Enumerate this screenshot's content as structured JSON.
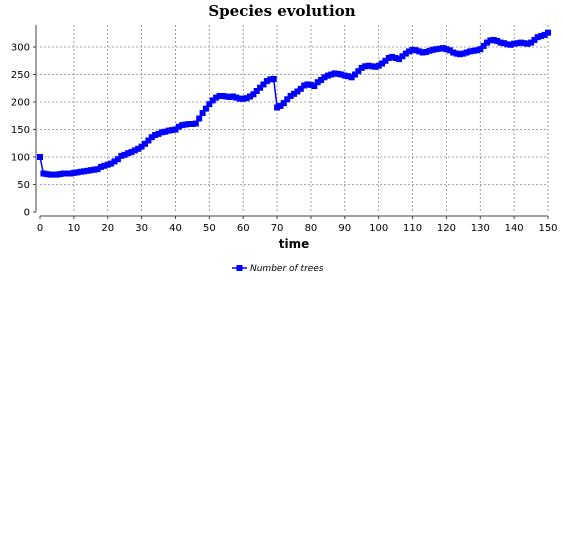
{
  "chart_data": {
    "type": "line",
    "title": "Species evolution",
    "xlabel": "time",
    "ylabel": "",
    "xlim": [
      0,
      150
    ],
    "ylim": [
      0,
      340
    ],
    "xticks": [
      0,
      10,
      20,
      30,
      40,
      50,
      60,
      70,
      80,
      90,
      100,
      110,
      120,
      130,
      140,
      150
    ],
    "yticks": [
      0,
      50,
      100,
      150,
      200,
      250,
      300
    ],
    "grid": true,
    "legend": "bottom",
    "series": [
      {
        "name": "Number of trees",
        "color": "#0000ff",
        "marker": "square",
        "x": [
          0,
          1,
          2,
          3,
          4,
          5,
          6,
          7,
          8,
          9,
          10,
          11,
          12,
          13,
          14,
          15,
          16,
          17,
          18,
          19,
          20,
          21,
          22,
          23,
          24,
          25,
          26,
          27,
          28,
          29,
          30,
          31,
          32,
          33,
          34,
          35,
          36,
          37,
          38,
          39,
          40,
          41,
          42,
          43,
          44,
          45,
          46,
          47,
          48,
          49,
          50,
          51,
          52,
          53,
          54,
          55,
          56,
          57,
          58,
          59,
          60,
          61,
          62,
          63,
          64,
          65,
          66,
          67,
          68,
          69,
          70,
          71,
          72,
          73,
          74,
          75,
          76,
          77,
          78,
          79,
          80,
          81,
          82,
          83,
          84,
          85,
          86,
          87,
          88,
          89,
          90,
          91,
          92,
          93,
          94,
          95,
          96,
          97,
          98,
          99,
          100,
          101,
          102,
          103,
          104,
          105,
          106,
          107,
          108,
          109,
          110,
          111,
          112,
          113,
          114,
          115,
          116,
          117,
          118,
          119,
          120,
          121,
          122,
          123,
          124,
          125,
          126,
          127,
          128,
          129,
          130,
          131,
          132,
          133,
          134,
          135,
          136,
          137,
          138,
          139,
          140,
          141,
          142,
          143,
          144,
          145,
          146,
          147,
          148,
          149,
          150
        ],
        "y": [
          100,
          70,
          69,
          68,
          68,
          68,
          69,
          70,
          70,
          70,
          71,
          72,
          73,
          74,
          75,
          76,
          77,
          78,
          82,
          84,
          86,
          88,
          92,
          96,
          102,
          104,
          107,
          109,
          112,
          115,
          119,
          124,
          130,
          136,
          140,
          142,
          145,
          146,
          148,
          149,
          150,
          155,
          158,
          159,
          160,
          160,
          161,
          170,
          180,
          188,
          196,
          203,
          208,
          211,
          211,
          210,
          209,
          210,
          208,
          206,
          206,
          207,
          210,
          214,
          220,
          226,
          232,
          238,
          241,
          242,
          190,
          193,
          198,
          205,
          211,
          215,
          219,
          224,
          230,
          232,
          231,
          229,
          236,
          240,
          245,
          248,
          250,
          252,
          251,
          250,
          248,
          247,
          245,
          250,
          256,
          262,
          265,
          266,
          265,
          264,
          266,
          270,
          275,
          280,
          282,
          280,
          278,
          283,
          288,
          292,
          295,
          294,
          292,
          290,
          291,
          293,
          295,
          296,
          297,
          298,
          296,
          294,
          290,
          288,
          287,
          288,
          290,
          292,
          293,
          294,
          296,
          302,
          308,
          312,
          313,
          311,
          308,
          307,
          305,
          304,
          306,
          307,
          308,
          307,
          306,
          308,
          313,
          318,
          320,
          322,
          326
        ]
      }
    ]
  }
}
